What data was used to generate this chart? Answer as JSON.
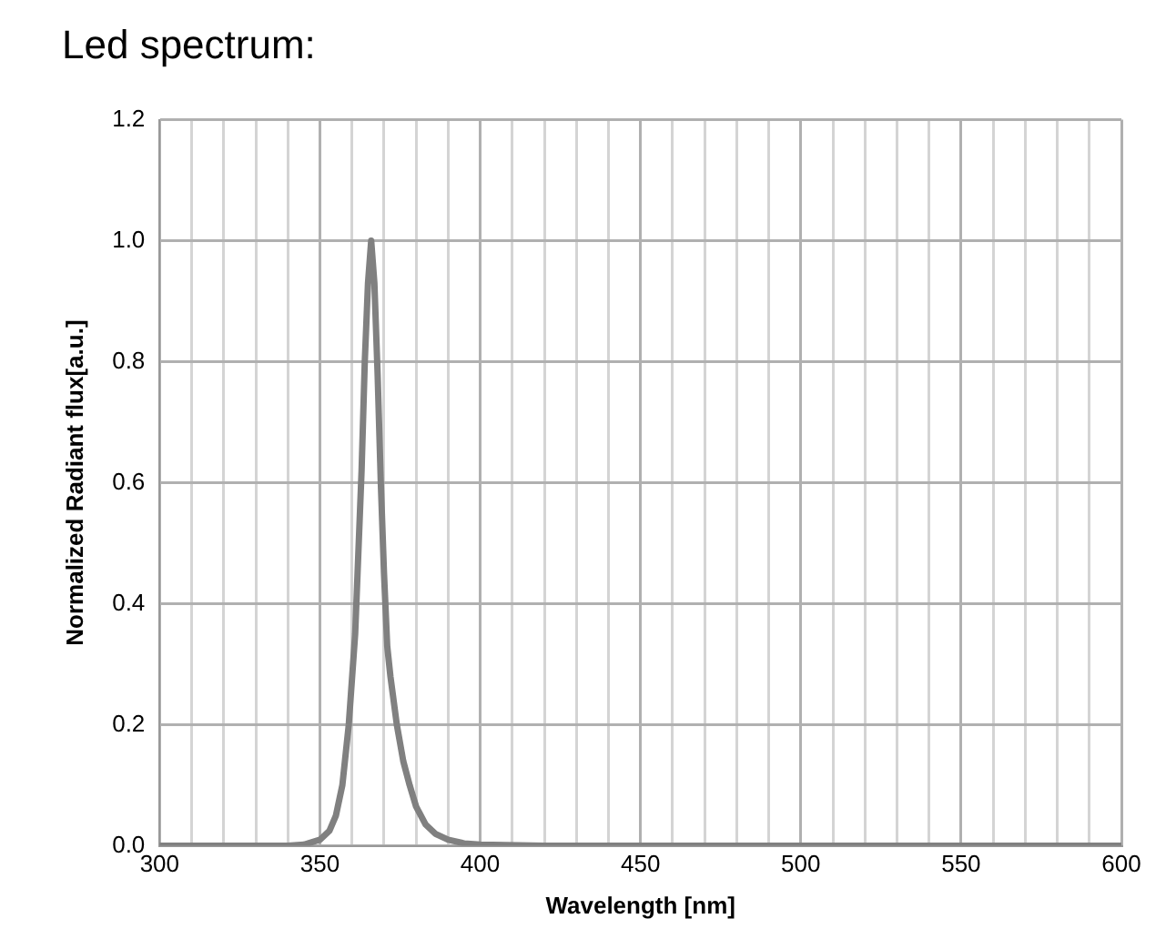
{
  "chart_data": {
    "type": "line",
    "title": "Led spectrum:",
    "xlabel": "Wavelength [nm]",
    "ylabel": "Normalized Radiant flux[a.u.]",
    "series": [
      {
        "color": "#808080",
        "x": [
          300,
          320,
          340,
          345,
          350,
          353,
          355,
          357,
          359,
          361,
          363,
          364,
          365,
          366,
          367,
          368,
          369,
          370,
          371,
          372,
          374,
          376,
          378,
          380,
          383,
          386,
          390,
          395,
          400,
          420,
          450,
          500,
          550,
          600
        ],
        "values": [
          0,
          0,
          0,
          0.002,
          0.01,
          0.025,
          0.05,
          0.1,
          0.2,
          0.35,
          0.62,
          0.8,
          0.93,
          1.0,
          0.93,
          0.78,
          0.6,
          0.45,
          0.33,
          0.28,
          0.2,
          0.14,
          0.1,
          0.065,
          0.035,
          0.02,
          0.01,
          0.004,
          0.002,
          0,
          0,
          0,
          0,
          0
        ]
      }
    ],
    "xlim": [
      300,
      600
    ],
    "xticks": [
      300,
      {
        "value": 310,
        "label": null
      },
      {
        "value": 320,
        "label": null
      },
      {
        "value": 330,
        "label": null
      },
      {
        "value": 340,
        "label": null
      },
      350,
      {
        "value": 360,
        "label": null
      },
      {
        "value": 370,
        "label": null
      },
      {
        "value": 380,
        "label": null
      },
      {
        "value": 390,
        "label": null
      },
      400,
      {
        "value": 410,
        "label": null
      },
      {
        "value": 420,
        "label": null
      },
      {
        "value": 430,
        "label": null
      },
      {
        "value": 440,
        "label": null
      },
      450,
      {
        "value": 460,
        "label": null
      },
      {
        "value": 470,
        "label": null
      },
      {
        "value": 480,
        "label": null
      },
      {
        "value": 490,
        "label": null
      },
      500,
      {
        "value": 510,
        "label": null
      },
      {
        "value": 520,
        "label": null
      },
      {
        "value": 530,
        "label": null
      },
      {
        "value": 540,
        "label": null
      },
      550,
      {
        "value": 560,
        "label": null
      },
      {
        "value": 570,
        "label": null
      },
      {
        "value": 580,
        "label": null
      },
      {
        "value": 590,
        "label": null
      },
      600
    ],
    "ylim": [
      0,
      1.2
    ],
    "yticks": [
      {
        "value": 0,
        "label": "0.0"
      },
      {
        "value": 0.2,
        "label": "0.2"
      },
      {
        "value": 0.4,
        "label": "0.4"
      },
      {
        "value": 0.6,
        "label": "0.6"
      },
      {
        "value": 0.8,
        "label": "0.8"
      },
      {
        "value": 1,
        "label": "1.0"
      },
      {
        "value": 1.2,
        "label": "1.2"
      }
    ],
    "grid": true,
    "marker": "none",
    "line_style": "solid"
  }
}
